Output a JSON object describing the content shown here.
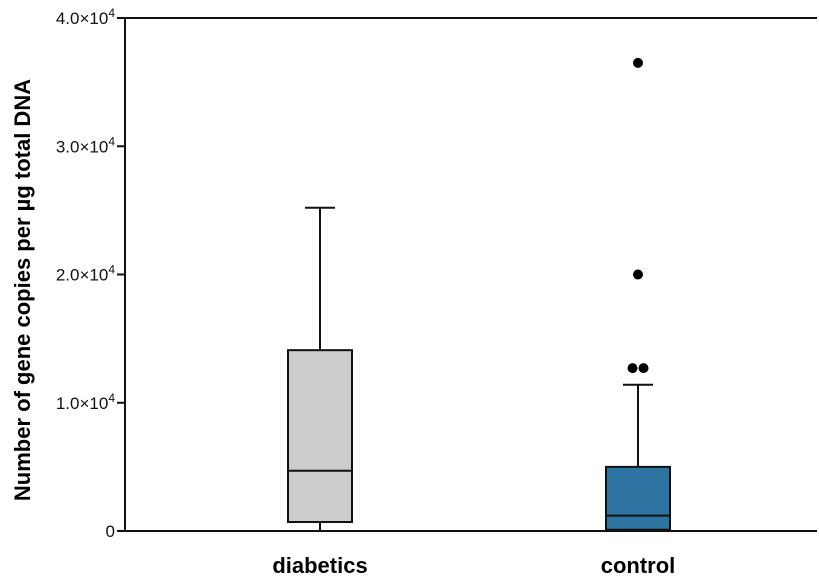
{
  "chart_data": {
    "type": "box",
    "title": "",
    "xlabel": "",
    "ylabel": "Number of gene copies per µg total DNA",
    "ylim": [
      0,
      40000
    ],
    "yticks": [
      {
        "value": 0,
        "label": "0",
        "exp": ""
      },
      {
        "value": 10000,
        "label": "1.0×10",
        "exp": "4"
      },
      {
        "value": 20000,
        "label": "2.0×10",
        "exp": "4"
      },
      {
        "value": 30000,
        "label": "3.0×10",
        "exp": "4"
      },
      {
        "value": 40000,
        "label": "4.0×10",
        "exp": "4"
      }
    ],
    "grid": false,
    "categories": [
      "diabetics",
      "control"
    ],
    "boxes": [
      {
        "category": "diabetics",
        "whisker_low": 0,
        "q1": 700,
        "median": 4700,
        "q3": 14100,
        "whisker_high": 25200,
        "outliers": [],
        "color": "#cbcccd"
      },
      {
        "category": "control",
        "whisker_low": 0,
        "q1": 100,
        "median": 1200,
        "q3": 5000,
        "whisker_high": 11400,
        "outliers": [
          12700,
          12700,
          20000,
          36500
        ],
        "color": "#2d74a0"
      }
    ]
  }
}
